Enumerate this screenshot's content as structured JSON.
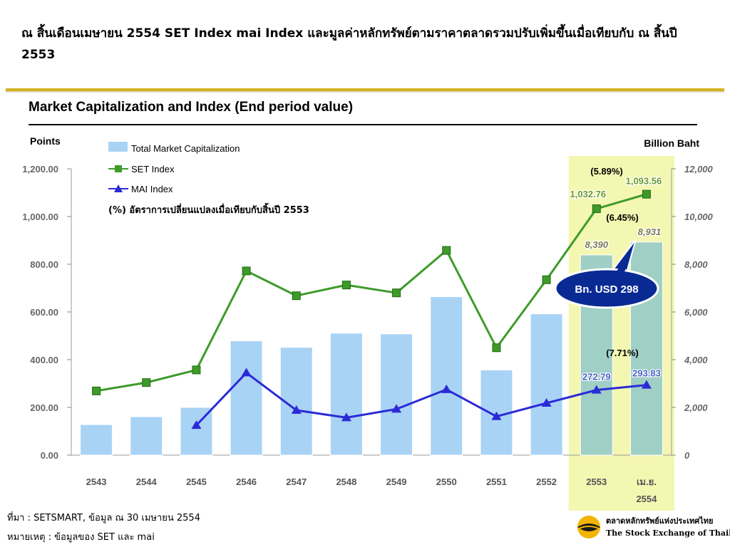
{
  "slide": {
    "title": "ณ สิ้นเดือนเมษายน 2554 SET Index mai Index และมูลค่าหลักทรัพย์ตามราคาตลาดรวมปรับเพิ่มขึ้นเมื่อเทียบกับ ณ สิ้นปี 2553"
  },
  "chart_data": {
    "type": "bar",
    "title": "Market Capitalization and Index (End period value)",
    "left_axis_label": "Points",
    "right_axis_label": "Billion Baht",
    "left_ticks": [
      "0.00",
      "200.00",
      "400.00",
      "600.00",
      "800.00",
      "1,000.00",
      "1,200.00"
    ],
    "right_ticks": [
      "0",
      "2,000",
      "4,000",
      "6,000",
      "8,000",
      "10,000",
      "12,000"
    ],
    "left_range": [
      0,
      1200
    ],
    "right_range": [
      0,
      12000
    ],
    "categories": [
      "2543",
      "2544",
      "2545",
      "2546",
      "2547",
      "2548",
      "2549",
      "2550",
      "2551",
      "2552",
      "2553",
      "เม.ย. 2554"
    ],
    "category_labels": [
      [
        "2543"
      ],
      [
        "2544"
      ],
      [
        "2545"
      ],
      [
        "2546"
      ],
      [
        "2547"
      ],
      [
        "2548"
      ],
      [
        "2549"
      ],
      [
        "2550"
      ],
      [
        "2551"
      ],
      [
        "2552"
      ],
      [
        "2553"
      ],
      [
        "เม.ย.",
        "2554"
      ]
    ],
    "series": [
      {
        "name": "Total Market Capitalization",
        "kind": "bar",
        "axis": "right",
        "color": "#a9d3f5",
        "values": [
          1280,
          1610,
          2000,
          4790,
          4520,
          5110,
          5080,
          6640,
          3570,
          5920,
          8390,
          8931
        ]
      },
      {
        "name": "SET Index",
        "kind": "line",
        "axis": "left",
        "color": "#3e9b2a",
        "marker": "square",
        "values": [
          269,
          304,
          357,
          772,
          668,
          713,
          680,
          858,
          450,
          735,
          1032.76,
          1093.56
        ]
      },
      {
        "name": "MAI Index",
        "kind": "line",
        "axis": "left",
        "color": "#2b2bd6",
        "marker": "triangle",
        "values": [
          null,
          null,
          125,
          345,
          188,
          157,
          193,
          275,
          162,
          218,
          272.79,
          293.83
        ]
      }
    ],
    "legend": {
      "position": "top-left",
      "note": "(%)  อัตราการเปลี่ยนแปลงเมื่อเทียบกับสิ้นปี 2553"
    },
    "data_labels": {
      "set_2553": "1,032.76",
      "set_2554": "1,093.56",
      "mai_2553": "272.79",
      "mai_2554": "293.83",
      "cap_2553": "8,390",
      "cap_2554": "8,931",
      "set_change": "(5.89%)",
      "cap_change": "(6.45%)",
      "mai_change": "(7.71%)"
    },
    "highlight": {
      "from_category": "2553",
      "to_category": "เม.ย. 2554",
      "color": "#f4f7b2"
    },
    "callout": {
      "text": "Bn. USD 298",
      "fill": "#0a2a93"
    },
    "grid": false
  },
  "footer": {
    "source": "ที่มา : SETSMART, ข้อมูล ณ 30 เมษายน 2554",
    "note": "หมายเหตุ : ข้อมูลของ SET และ mai"
  },
  "logo": {
    "text_th": "ตลาดหลักทรัพย์แห่งประเทศไทย",
    "text_en": "The Stock Exchange of Thailand"
  }
}
